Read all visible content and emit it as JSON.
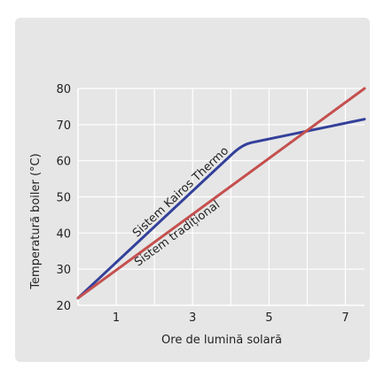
{
  "colors": {
    "panel_bg": "#e6e6e6",
    "plot_bg": "#e6e6e6",
    "grid": "#ffffff",
    "kairos": "#33409a",
    "traditional": "#c4504f",
    "text": "#222222"
  },
  "chart_data": {
    "type": "line",
    "title": "",
    "xlabel": "Ore de lumină solară",
    "ylabel": "Temperatură boiler (°C)",
    "xlim": [
      0,
      7.5
    ],
    "ylim": [
      20,
      80
    ],
    "x_ticks": [
      "1",
      "3",
      "5",
      "7"
    ],
    "y_ticks": [
      "20",
      "30",
      "40",
      "50",
      "60",
      "70",
      "80"
    ],
    "grid": true,
    "series": [
      {
        "name": "Sistem Kairos Thermo",
        "color": "#33409a",
        "x": [
          0,
          4.3,
          7.5
        ],
        "y": [
          22,
          64.5,
          71.5
        ]
      },
      {
        "name": "Sistem tradițional",
        "color": "#c4504f",
        "x": [
          0,
          7.5
        ],
        "y": [
          22,
          80
        ]
      }
    ]
  }
}
